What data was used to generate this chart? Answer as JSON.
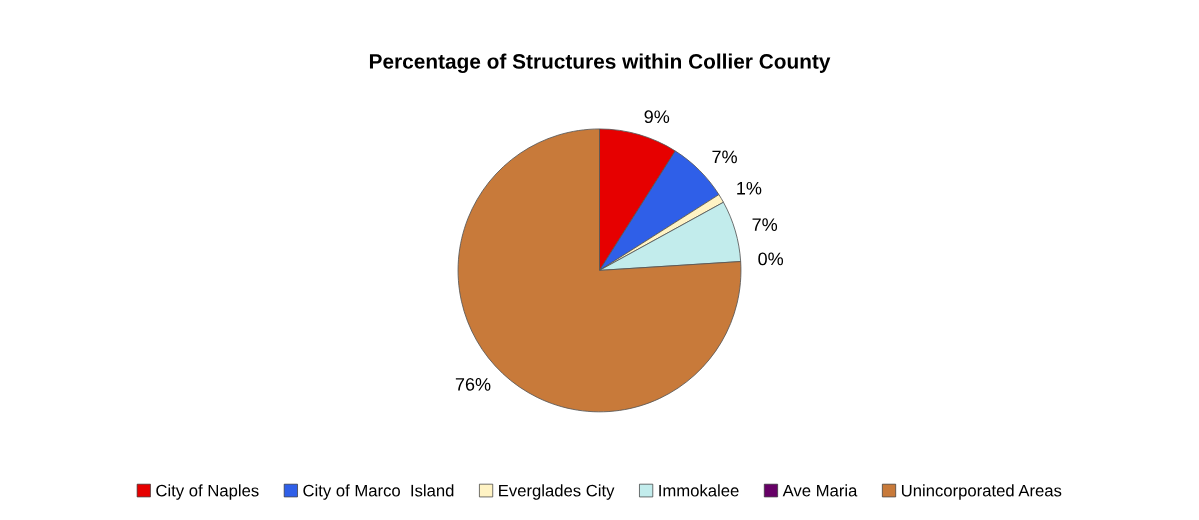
{
  "chart_data": {
    "type": "pie",
    "title": "Percentage of Structures within Collier County",
    "categories": [
      "City of Naples",
      "City of Marco  Island",
      "Everglades City",
      "Immokalee",
      "Ave Maria",
      "Unincorporated Areas"
    ],
    "values": [
      9,
      7,
      1,
      7,
      0,
      76
    ],
    "colors": [
      "#e60000",
      "#2f5fe8",
      "#fff3c4",
      "#c2ecec",
      "#660066",
      "#c87a3a"
    ],
    "value_labels": [
      "9%",
      "7%",
      "1%",
      "7%",
      "0%",
      "76%"
    ],
    "legend": "bottom"
  }
}
